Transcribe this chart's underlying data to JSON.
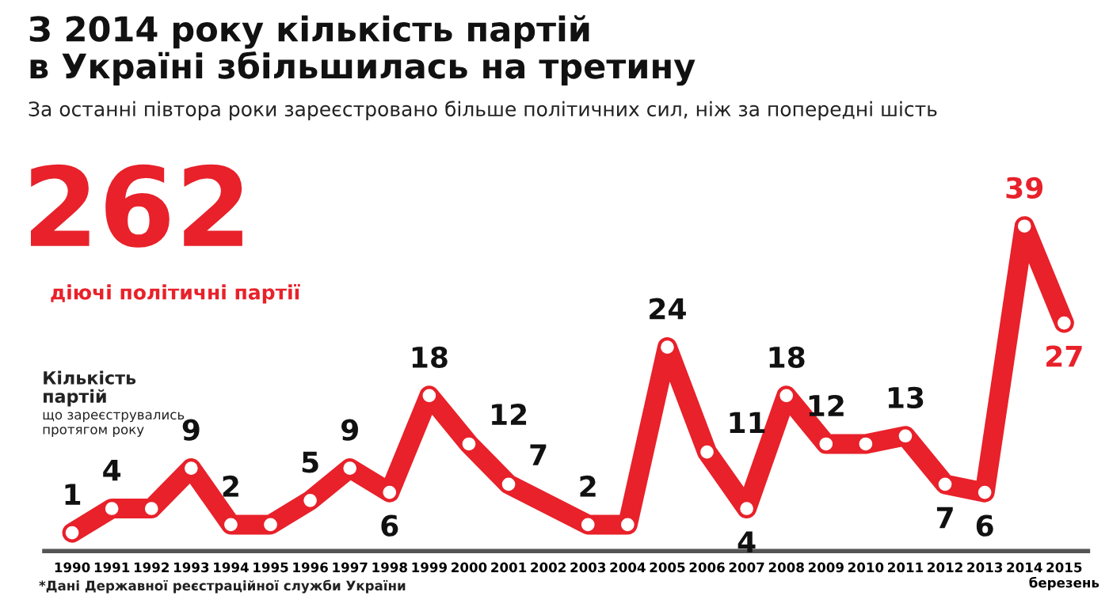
{
  "chart_data": {
    "type": "line",
    "title": "З 2014 року кількість партій\nв Україні збільшилась на третину",
    "subtitle": "За останні півтора роки зареєстровано більше політичних сил, ніж за попередні шість",
    "ylabel": "Кількість\nпартій",
    "annotations": [
      "262",
      "діючі політичні партії",
      "що зареєструвались\nпротягом року",
      "*Дані Державної реєстраційної служби України"
    ],
    "series": [
      {
        "color": "#e8212a",
        "x": [
          1990,
          1991,
          1992,
          1993,
          1994,
          1995,
          1996,
          1997,
          1998,
          1999,
          2000,
          2001,
          2003,
          2004,
          2005,
          2006,
          2007,
          2008,
          2009,
          2010,
          2011,
          2012,
          2013,
          2014,
          2015
        ],
        "values": [
          1,
          4,
          4,
          9,
          2,
          2,
          5,
          9,
          6,
          18,
          12,
          7,
          2,
          2,
          24,
          11,
          4,
          18,
          12,
          12,
          13,
          7,
          6,
          39,
          27
        ],
        "value_labels": [
          "1",
          "4",
          null,
          "9",
          "2",
          null,
          "5",
          "9",
          "6",
          "18",
          "12",
          "7",
          "2",
          null,
          "24",
          "11",
          "4",
          "18",
          "12",
          null,
          "13",
          "7",
          "6",
          "39",
          "27"
        ]
      }
    ],
    "xlim": [
      1989.3,
      2015.6
    ],
    "xticks": [
      1990,
      1991,
      1992,
      1993,
      1994,
      1995,
      1996,
      1997,
      1998,
      1999,
      2000,
      2001,
      2002,
      2003,
      2004,
      2005,
      2006,
      2007,
      2008,
      2009,
      2010,
      2011,
      2012,
      2013,
      2014,
      {
        "value": 2015,
        "label": "2015\nберезень"
      }
    ],
    "tick_labels": "x",
    "marker": "circle",
    "line_style": "solid",
    "grid": false,
    "legend": false
  }
}
